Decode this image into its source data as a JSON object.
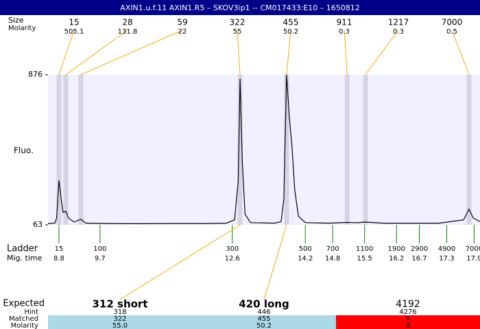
{
  "chart_data": {
    "type": "line",
    "title": "AXIN1.u.f.11  AXIN1.R5 – SKOV3ip1 -- CM017433:E10 – 1650812",
    "ylabel": "Fluo.",
    "ylim": [
      63,
      876
    ],
    "yticks": [
      63,
      876
    ],
    "xlim": [
      8.56,
      18.03
    ],
    "color": "#000000",
    "x": [
      8.56,
      8.71,
      8.75,
      8.8,
      8.85,
      8.89,
      8.95,
      9.01,
      9.13,
      9.28,
      9.39,
      9.76,
      10.51,
      11.27,
      12.02,
      12.47,
      12.65,
      12.73,
      12.77,
      12.82,
      12.88,
      13.0,
      13.52,
      13.67,
      13.73,
      13.79,
      13.85,
      13.91,
      13.97,
      14.05,
      14.2,
      14.72,
      15.12,
      15.33,
      15.51,
      15.93,
      17.13,
      17.67,
      17.79,
      17.88,
      18.03
    ],
    "values": [
      70,
      72,
      100,
      304,
      200,
      130,
      137,
      100,
      78,
      93,
      72,
      70,
      69,
      70,
      70,
      72,
      90,
      300,
      854,
      400,
      120,
      75,
      72,
      80,
      200,
      876,
      650,
      480,
      250,
      110,
      75,
      72,
      76,
      74,
      78,
      72,
      72,
      90,
      148,
      100,
      80
    ],
    "peaks": {
      "size_label": "Size",
      "molarity_label": "Molarity",
      "sizes": [
        15,
        28,
        59,
        322,
        455,
        911,
        1217,
        7000
      ],
      "molarity": [
        505.1,
        131.8,
        22,
        55,
        50.2,
        0.3,
        0.3,
        0.5
      ],
      "x": [
        8.8,
        8.95,
        9.28,
        12.77,
        13.79,
        15.12,
        15.52,
        17.79
      ]
    },
    "ladder": {
      "label": "Ladder",
      "time_label": "Mig. time",
      "sizes": [
        15,
        100,
        300,
        500,
        700,
        1100,
        1900,
        2900,
        4900,
        7000
      ],
      "times": [
        8.8,
        9.7,
        12.6,
        14.2,
        14.8,
        15.5,
        16.2,
        16.7,
        17.3,
        17.9
      ]
    }
  },
  "table": {
    "row_labels": [
      "Expected",
      "Hint",
      "Matched",
      "Molarity"
    ],
    "columns": [
      {
        "expected": "312 short",
        "hint": "318",
        "matched": "322",
        "molarity": "55.0"
      },
      {
        "expected": "420 long",
        "hint": "446",
        "matched": "455",
        "molarity": "50.2"
      },
      {
        "expected": "4192",
        "hint": "4276",
        "matched": "X",
        "molarity": "X"
      }
    ]
  }
}
